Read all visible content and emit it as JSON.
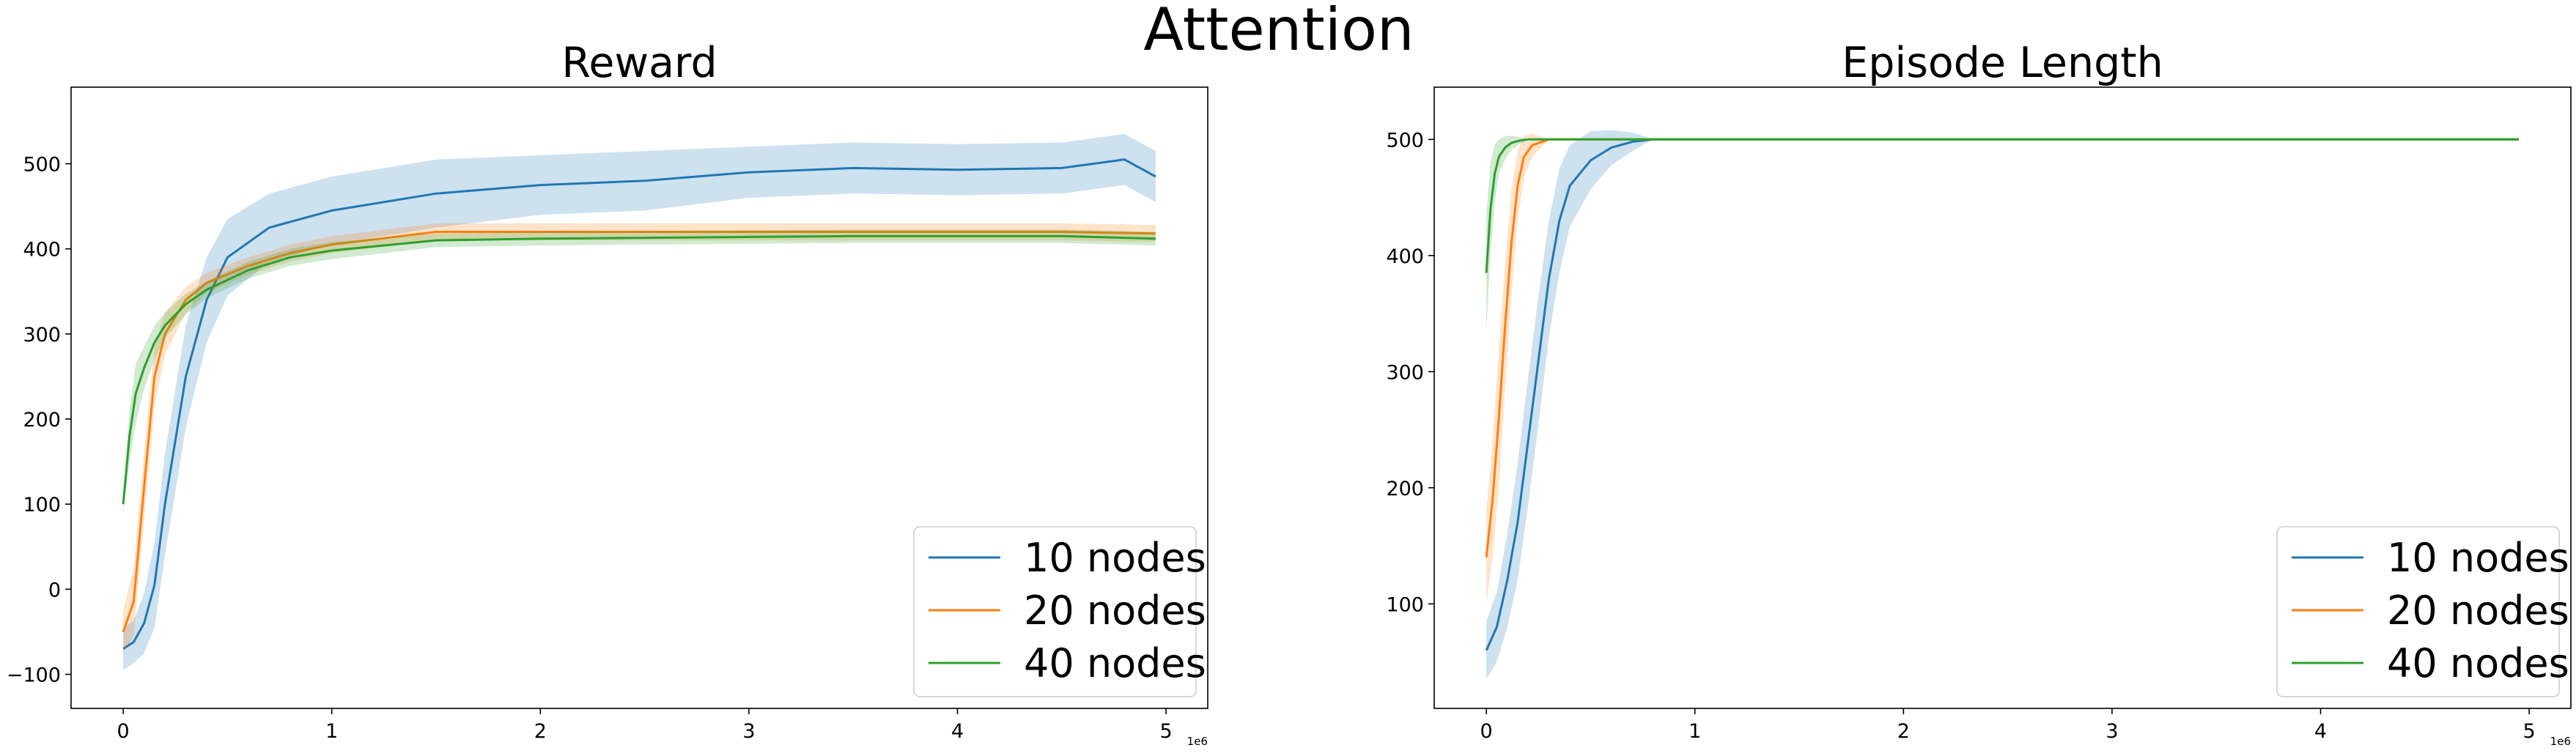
{
  "figure": {
    "suptitle": "Attention"
  },
  "chart_data": [
    {
      "type": "line",
      "title": "Reward",
      "xlabel": "",
      "ylabel": "",
      "x_offset_label": "1e6",
      "xlim": [
        -0.25,
        5.2
      ],
      "ylim": [
        -140,
        590
      ],
      "xticks": [
        0,
        1,
        2,
        3,
        4,
        5
      ],
      "yticks": [
        -100,
        0,
        100,
        200,
        300,
        400,
        500
      ],
      "grid": false,
      "legend": "bottom-right",
      "shaded_band": "mean ± std",
      "series": [
        {
          "name": "10 nodes",
          "color": "#1f77b4",
          "x": [
            0,
            0.05,
            0.1,
            0.15,
            0.2,
            0.3,
            0.4,
            0.5,
            0.7,
            1.0,
            1.5,
            2.0,
            2.5,
            3.0,
            3.5,
            4.0,
            4.5,
            4.8,
            4.95
          ],
          "y": [
            -70,
            -62,
            -40,
            5,
            100,
            250,
            340,
            390,
            425,
            445,
            465,
            475,
            480,
            490,
            495,
            493,
            495,
            505,
            485
          ],
          "band": [
            25,
            25,
            35,
            50,
            60,
            60,
            50,
            45,
            40,
            40,
            40,
            35,
            35,
            30,
            30,
            30,
            30,
            30,
            30
          ]
        },
        {
          "name": "20 nodes",
          "color": "#ff7f0e",
          "x": [
            0,
            0.05,
            0.1,
            0.15,
            0.2,
            0.3,
            0.4,
            0.6,
            0.8,
            1.0,
            1.5,
            2.0,
            2.5,
            3.0,
            3.5,
            4.0,
            4.5,
            4.95
          ],
          "y": [
            -50,
            -15,
            120,
            250,
            300,
            340,
            360,
            380,
            395,
            405,
            420,
            420,
            420,
            420,
            420,
            420,
            420,
            418
          ],
          "band": [
            25,
            40,
            40,
            35,
            25,
            15,
            12,
            10,
            10,
            10,
            10,
            10,
            10,
            10,
            10,
            10,
            10,
            10
          ]
        },
        {
          "name": "40 nodes",
          "color": "#2ca02c",
          "x": [
            0,
            0.03,
            0.06,
            0.1,
            0.15,
            0.2,
            0.3,
            0.4,
            0.6,
            0.8,
            1.0,
            1.5,
            2.0,
            2.5,
            3.0,
            3.5,
            4.0,
            4.5,
            4.95
          ],
          "y": [
            100,
            180,
            230,
            260,
            290,
            310,
            335,
            352,
            375,
            390,
            398,
            410,
            412,
            413,
            414,
            415,
            415,
            415,
            412
          ],
          "band": [
            10,
            30,
            35,
            25,
            20,
            15,
            12,
            10,
            10,
            10,
            10,
            8,
            8,
            8,
            8,
            8,
            8,
            8,
            8
          ]
        }
      ]
    },
    {
      "type": "line",
      "title": "Episode Length",
      "xlabel": "",
      "ylabel": "",
      "x_offset_label": "1e6",
      "xlim": [
        -0.25,
        5.2
      ],
      "ylim": [
        10,
        545
      ],
      "xticks": [
        0,
        1,
        2,
        3,
        4,
        5
      ],
      "yticks": [
        100,
        200,
        300,
        400,
        500
      ],
      "grid": false,
      "legend": "bottom-right",
      "shaded_band": "mean ± std",
      "series": [
        {
          "name": "10 nodes",
          "color": "#1f77b4",
          "x": [
            0,
            0.05,
            0.1,
            0.15,
            0.2,
            0.25,
            0.3,
            0.35,
            0.4,
            0.5,
            0.6,
            0.7,
            0.8,
            1.2,
            2.0,
            3.0,
            4.0,
            4.95
          ],
          "y": [
            60,
            80,
            120,
            170,
            240,
            310,
            380,
            430,
            460,
            482,
            493,
            498,
            500,
            500,
            500,
            500,
            500,
            500
          ],
          "band": [
            25,
            30,
            40,
            50,
            55,
            55,
            50,
            45,
            35,
            25,
            15,
            8,
            0,
            0,
            0,
            0,
            0,
            0
          ]
        },
        {
          "name": "20 nodes",
          "color": "#ff7f0e",
          "x": [
            0,
            0.03,
            0.06,
            0.09,
            0.12,
            0.15,
            0.18,
            0.22,
            0.3,
            1.0,
            2.0,
            3.0,
            4.0,
            4.95
          ],
          "y": [
            140,
            190,
            260,
            340,
            410,
            460,
            485,
            495,
            500,
            500,
            500,
            500,
            500,
            500
          ],
          "band": [
            40,
            50,
            60,
            55,
            45,
            30,
            18,
            10,
            0,
            0,
            0,
            0,
            0,
            0
          ]
        },
        {
          "name": "40 nodes",
          "color": "#2ca02c",
          "x": [
            0,
            0.02,
            0.04,
            0.06,
            0.09,
            0.12,
            0.16,
            0.2,
            0.3,
            1.0,
            2.0,
            3.0,
            4.0,
            4.95
          ],
          "y": [
            385,
            440,
            470,
            485,
            493,
            497,
            499,
            500,
            500,
            500,
            500,
            500,
            500,
            500
          ],
          "band": [
            50,
            40,
            25,
            15,
            10,
            6,
            3,
            0,
            0,
            0,
            0,
            0,
            0,
            0
          ]
        }
      ]
    }
  ]
}
